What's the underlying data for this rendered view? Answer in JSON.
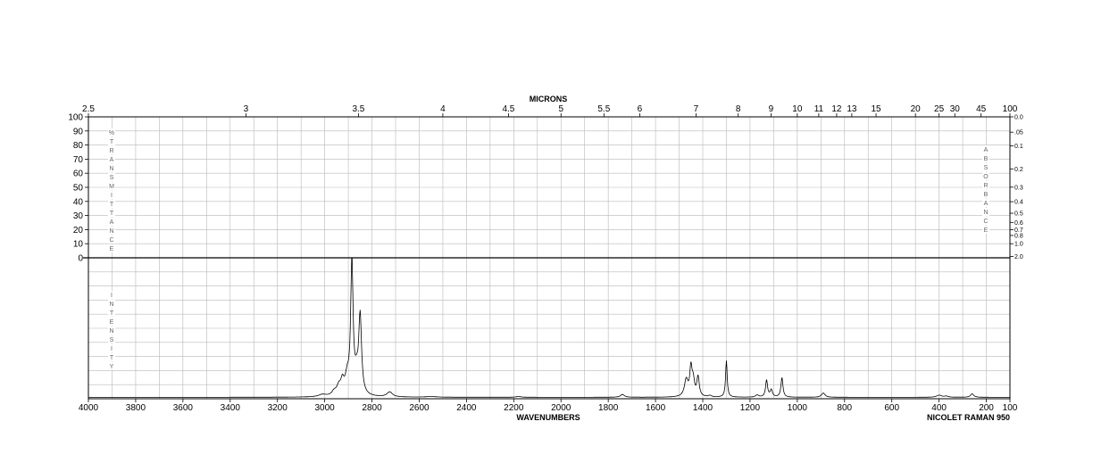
{
  "chart_data": {
    "type": "line",
    "top_axis_label": "MICRONS",
    "bottom_axis_label": "WAVENUMBERS",
    "instrument_label": "NICOLET RAMAN 950",
    "left_upper_label": "%TRANSMITTANCE",
    "left_lower_label": "INTENSITY",
    "right_upper_label": "ABSORBANCE",
    "x_range": [
      4000,
      100
    ],
    "x_ticks": [
      {
        "value": 4000,
        "label": "4000"
      },
      {
        "value": 3800,
        "label": "3800"
      },
      {
        "value": 3600,
        "label": "3600"
      },
      {
        "value": 3400,
        "label": "3400"
      },
      {
        "value": 3200,
        "label": "3200"
      },
      {
        "value": 3000,
        "label": "3000"
      },
      {
        "value": 2800,
        "label": "2800"
      },
      {
        "value": 2600,
        "label": "2600"
      },
      {
        "value": 2400,
        "label": "2400"
      },
      {
        "value": 2200,
        "label": "2200"
      },
      {
        "value": 2000,
        "label": "2000"
      },
      {
        "value": 1800,
        "label": "1800"
      },
      {
        "value": 1600,
        "label": "1600"
      },
      {
        "value": 1400,
        "label": "1400"
      },
      {
        "value": 1200,
        "label": "1200"
      },
      {
        "value": 1000,
        "label": "1000"
      },
      {
        "value": 800,
        "label": "800"
      },
      {
        "value": 600,
        "label": "600"
      },
      {
        "value": 400,
        "label": "400"
      },
      {
        "value": 200,
        "label": "200"
      },
      {
        "value": 100,
        "label": "100"
      }
    ],
    "micron_ticks": [
      {
        "value": 2.5,
        "label": "2.5"
      },
      {
        "value": 3,
        "label": "3"
      },
      {
        "value": 3.5,
        "label": "3.5"
      },
      {
        "value": 4,
        "label": "4"
      },
      {
        "value": 4.5,
        "label": "4.5"
      },
      {
        "value": 5,
        "label": "5"
      },
      {
        "value": 5.5,
        "label": "5.5"
      },
      {
        "value": 6,
        "label": "6"
      },
      {
        "value": 7,
        "label": "7"
      },
      {
        "value": 8,
        "label": "8"
      },
      {
        "value": 9,
        "label": "9"
      },
      {
        "value": 10,
        "label": "10"
      },
      {
        "value": 11,
        "label": "11"
      },
      {
        "value": 12,
        "label": "12"
      },
      {
        "value": 13,
        "label": "13"
      },
      {
        "value": 15,
        "label": "15"
      },
      {
        "value": 20,
        "label": "20"
      },
      {
        "value": 25,
        "label": "25"
      },
      {
        "value": 30,
        "label": "30"
      },
      {
        "value": 45,
        "label": "45"
      },
      {
        "value": 100,
        "label": "100"
      }
    ],
    "transmittance_ticks": [
      {
        "value": 100,
        "label": "100"
      },
      {
        "value": 90,
        "label": "90"
      },
      {
        "value": 80,
        "label": "80"
      },
      {
        "value": 70,
        "label": "70"
      },
      {
        "value": 60,
        "label": "60"
      },
      {
        "value": 50,
        "label": "50"
      },
      {
        "value": 40,
        "label": "40"
      },
      {
        "value": 30,
        "label": "30"
      },
      {
        "value": 20,
        "label": "20"
      },
      {
        "value": 10,
        "label": "10"
      },
      {
        "value": 0,
        "label": "0"
      }
    ],
    "absorbance_ticks": [
      {
        "value": 0.0,
        "label": "0.0"
      },
      {
        "value": 0.05,
        "label": ".05"
      },
      {
        "value": 0.1,
        "label": "0.1"
      },
      {
        "value": 0.2,
        "label": "0.2"
      },
      {
        "value": 0.3,
        "label": "0.3"
      },
      {
        "value": 0.4,
        "label": "0.4"
      },
      {
        "value": 0.5,
        "label": "0.5"
      },
      {
        "value": 0.6,
        "label": "0.6"
      },
      {
        "value": 0.7,
        "label": "0.7"
      },
      {
        "value": 0.8,
        "label": "0.8"
      },
      {
        "value": 1.0,
        "label": "1.0"
      },
      {
        "value": 2.0,
        "label": "2.0"
      }
    ],
    "intensity_range": [
      0,
      100
    ],
    "baseline": 1.0,
    "peaks": [
      {
        "x": 3010,
        "height": 1.5,
        "width": 18
      },
      {
        "x": 2960,
        "height": 3,
        "width": 12
      },
      {
        "x": 2940,
        "height": 6,
        "width": 10
      },
      {
        "x": 2925,
        "height": 9,
        "width": 8
      },
      {
        "x": 2905,
        "height": 12,
        "width": 10
      },
      {
        "x": 2885,
        "height": 95,
        "width": 6
      },
      {
        "x": 2865,
        "height": 12,
        "width": 10
      },
      {
        "x": 2850,
        "height": 55,
        "width": 7
      },
      {
        "x": 2725,
        "height": 3.5,
        "width": 14
      },
      {
        "x": 2550,
        "height": 0.5,
        "width": 25
      },
      {
        "x": 2180,
        "height": 0.6,
        "width": 12
      },
      {
        "x": 1740,
        "height": 2,
        "width": 10
      },
      {
        "x": 1470,
        "height": 12,
        "width": 9
      },
      {
        "x": 1450,
        "height": 20,
        "width": 6
      },
      {
        "x": 1440,
        "height": 10,
        "width": 6
      },
      {
        "x": 1420,
        "height": 14,
        "width": 6
      },
      {
        "x": 1370,
        "height": 1,
        "width": 8
      },
      {
        "x": 1300,
        "height": 26,
        "width": 4
      },
      {
        "x": 1170,
        "height": 1.5,
        "width": 8
      },
      {
        "x": 1130,
        "height": 12,
        "width": 5
      },
      {
        "x": 1110,
        "height": 5,
        "width": 6
      },
      {
        "x": 1065,
        "height": 14,
        "width": 5
      },
      {
        "x": 890,
        "height": 3,
        "width": 9
      },
      {
        "x": 400,
        "height": 1.5,
        "width": 12
      },
      {
        "x": 370,
        "height": 0.8,
        "width": 10
      },
      {
        "x": 260,
        "height": 2.5,
        "width": 8
      }
    ]
  }
}
